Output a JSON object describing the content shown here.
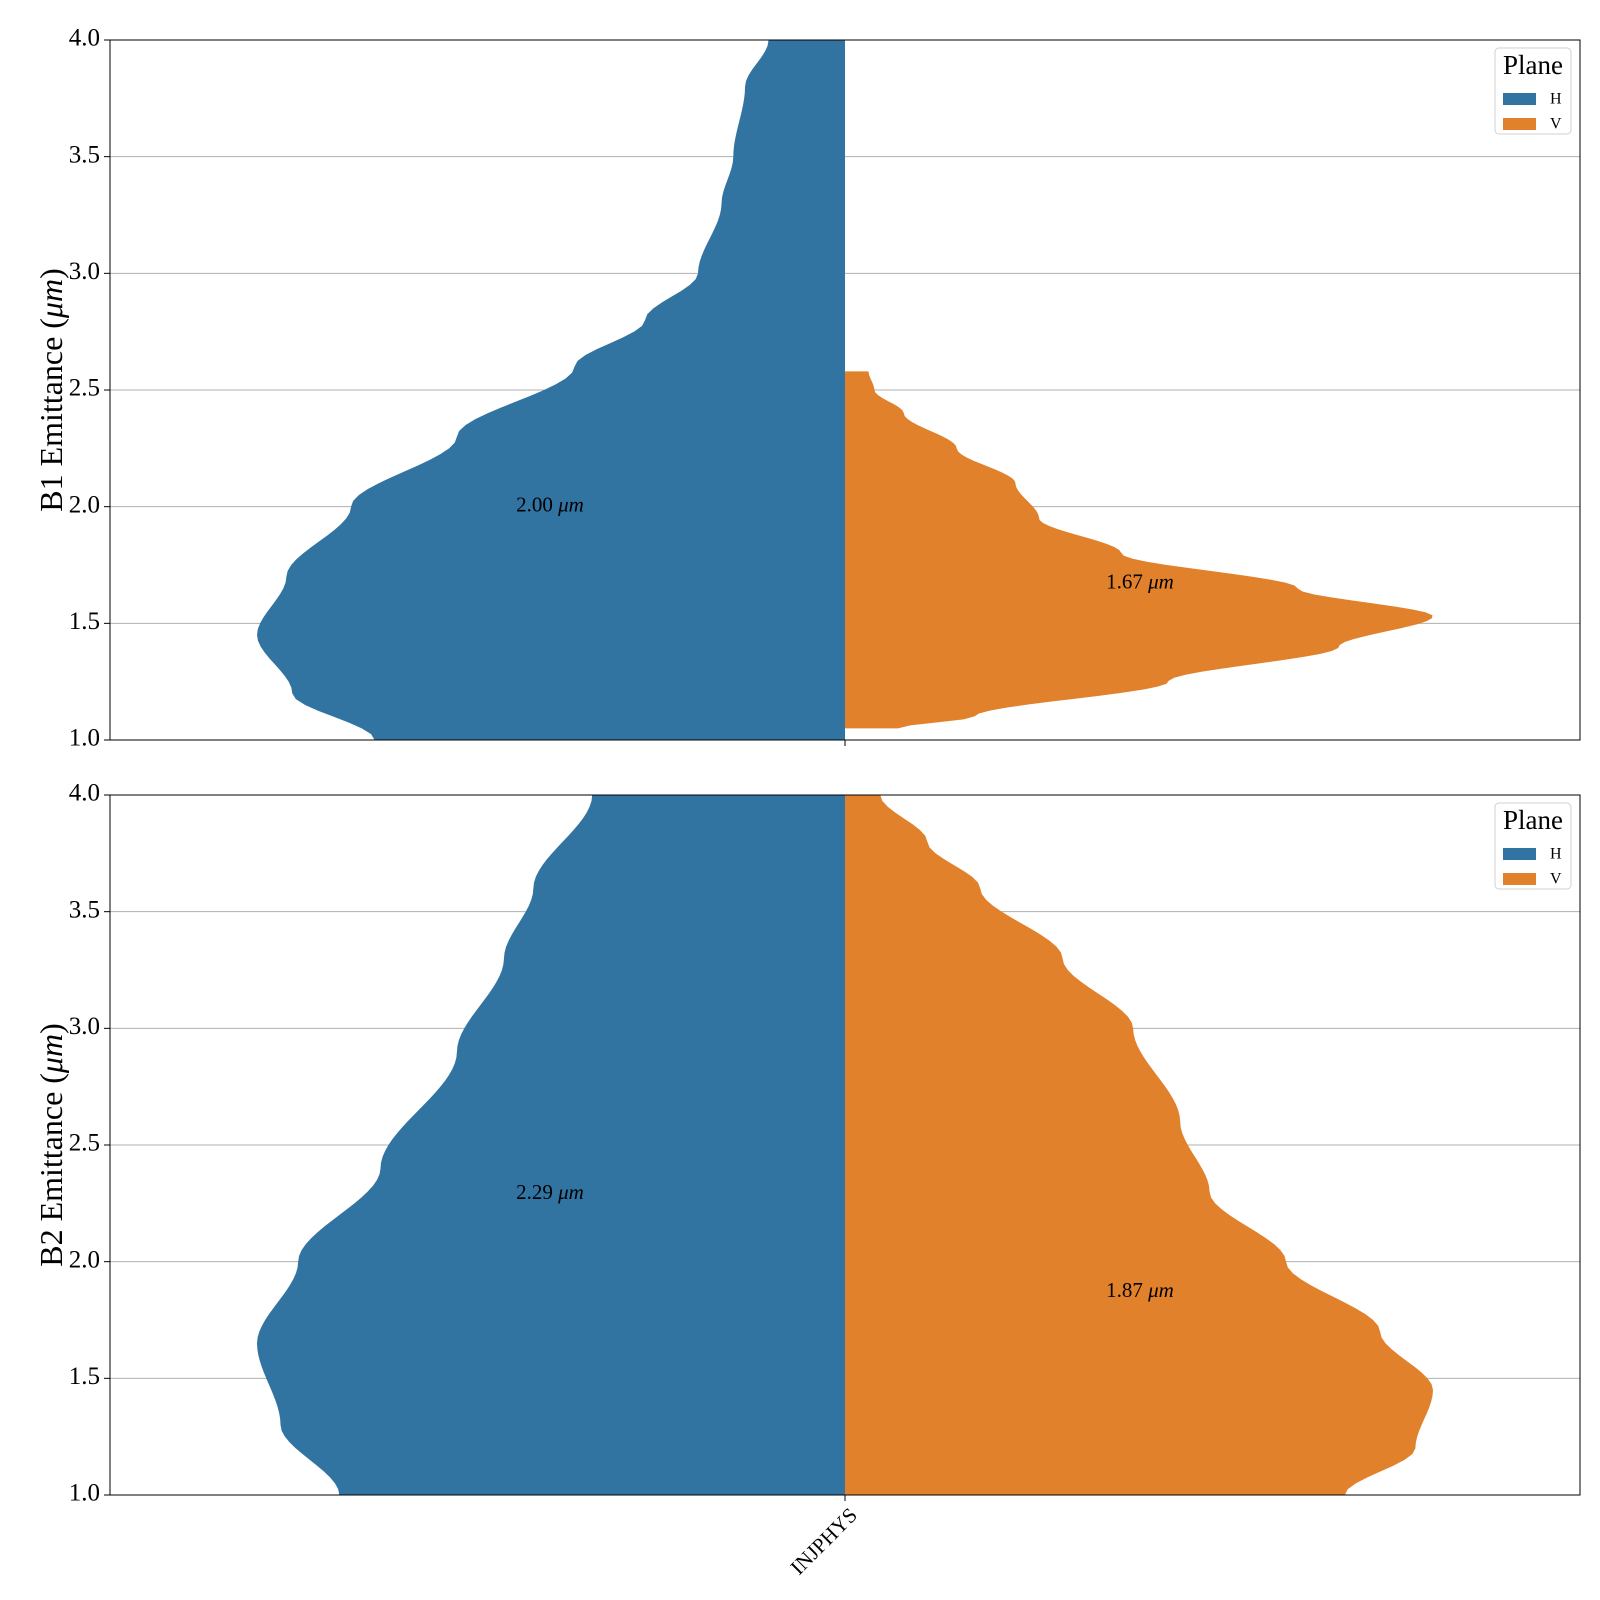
{
  "chart_data": [
    {
      "type": "violin",
      "categories": [
        "INJPHYS"
      ],
      "ylabel_parts": [
        "B1 Emittance (",
        "μm",
        ")"
      ],
      "ylim": [
        1.0,
        4.0
      ],
      "yticks": [
        "1.0",
        "1.5",
        "2.0",
        "2.5",
        "3.0",
        "3.5",
        "4.0"
      ],
      "grid": "horizontal",
      "legend": {
        "title": "Plane",
        "placement": "top-right",
        "entries": [
          "H",
          "V"
        ]
      },
      "series": [
        {
          "name": "H",
          "color": "#3274a1",
          "side": "left",
          "annotation": "2.00",
          "annotation_y": 2.0,
          "density_profile": [
            [
              1.0,
              0.8
            ],
            [
              1.2,
              0.94
            ],
            [
              1.45,
              1.0
            ],
            [
              1.7,
              0.95
            ],
            [
              2.0,
              0.84
            ],
            [
              2.3,
              0.66
            ],
            [
              2.6,
              0.46
            ],
            [
              2.8,
              0.34
            ],
            [
              3.0,
              0.25
            ],
            [
              3.3,
              0.21
            ],
            [
              3.5,
              0.19
            ],
            [
              3.8,
              0.17
            ],
            [
              4.0,
              0.13
            ]
          ]
        },
        {
          "name": "V",
          "color": "#e1812c",
          "side": "right",
          "annotation": "1.67",
          "annotation_y": 1.67,
          "range": [
            1.05,
            2.58
          ],
          "density_profile": [
            [
              1.05,
              0.09
            ],
            [
              1.1,
              0.22
            ],
            [
              1.25,
              0.55
            ],
            [
              1.4,
              0.84
            ],
            [
              1.53,
              1.0
            ],
            [
              1.65,
              0.77
            ],
            [
              1.8,
              0.47
            ],
            [
              1.95,
              0.33
            ],
            [
              2.1,
              0.29
            ],
            [
              2.25,
              0.19
            ],
            [
              2.4,
              0.1
            ],
            [
              2.5,
              0.05
            ],
            [
              2.58,
              0.04
            ]
          ]
        }
      ],
      "annotation_unit": "μm"
    },
    {
      "type": "violin",
      "categories": [
        "INJPHYS"
      ],
      "ylabel_parts": [
        "B2 Emittance (",
        "μm",
        ")"
      ],
      "ylim": [
        1.0,
        4.0
      ],
      "yticks": [
        "1.0",
        "1.5",
        "2.0",
        "2.5",
        "3.0",
        "3.5",
        "4.0"
      ],
      "grid": "horizontal",
      "legend": {
        "title": "Plane",
        "placement": "top-right",
        "entries": [
          "H",
          "V"
        ]
      },
      "series": [
        {
          "name": "H",
          "color": "#3274a1",
          "side": "left",
          "annotation": "2.29",
          "annotation_y": 2.29,
          "density_profile": [
            [
              1.0,
              0.86
            ],
            [
              1.3,
              0.96
            ],
            [
              1.65,
              1.0
            ],
            [
              2.0,
              0.93
            ],
            [
              2.4,
              0.79
            ],
            [
              2.9,
              0.66
            ],
            [
              3.3,
              0.58
            ],
            [
              3.6,
              0.53
            ],
            [
              4.0,
              0.43
            ]
          ]
        },
        {
          "name": "V",
          "color": "#e1812c",
          "side": "right",
          "annotation": "1.87",
          "annotation_y": 1.87,
          "density_profile": [
            [
              1.0,
              0.85
            ],
            [
              1.2,
              0.97
            ],
            [
              1.45,
              1.0
            ],
            [
              1.7,
              0.91
            ],
            [
              2.0,
              0.75
            ],
            [
              2.3,
              0.62
            ],
            [
              2.6,
              0.57
            ],
            [
              3.0,
              0.49
            ],
            [
              3.3,
              0.37
            ],
            [
              3.6,
              0.23
            ],
            [
              3.8,
              0.14
            ],
            [
              4.0,
              0.06
            ]
          ]
        }
      ],
      "annotation_unit": "μm"
    }
  ]
}
